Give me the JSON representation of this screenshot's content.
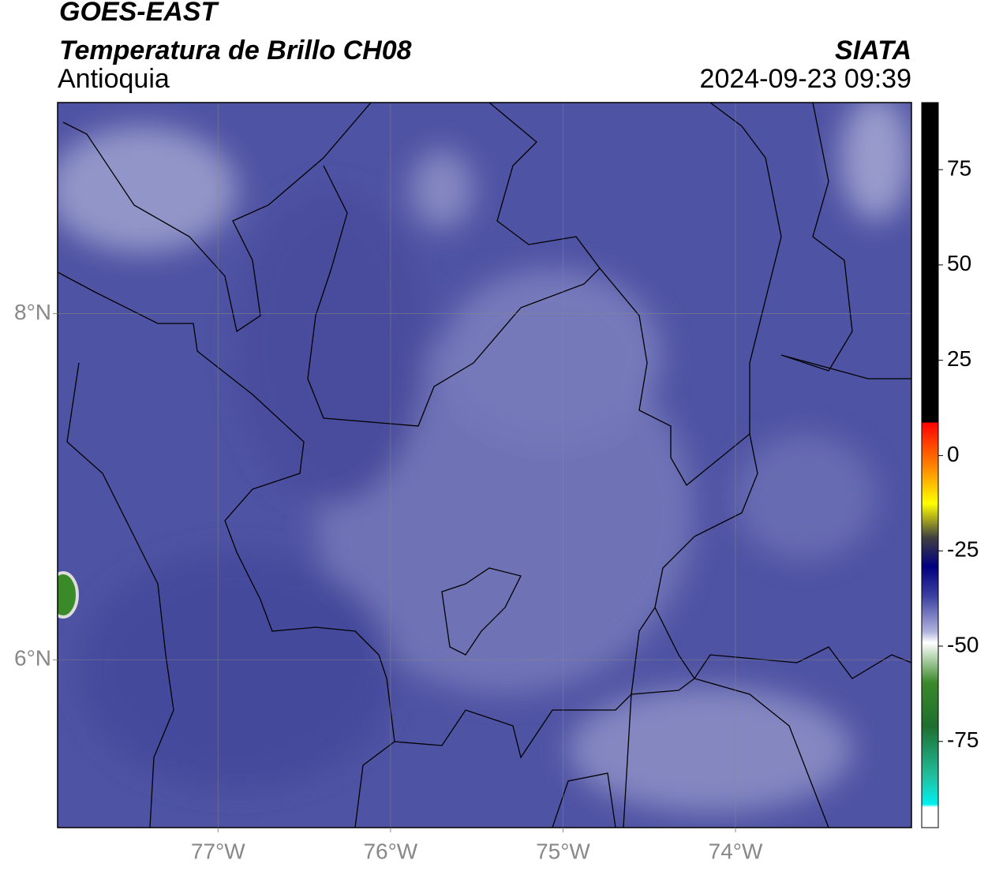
{
  "header": {
    "title": "GOES-EAST",
    "subtitle": "Temperatura de Brillo CH08",
    "region": "Antioquia",
    "source": "SIATA",
    "datetime": "2024-09-23 09:39"
  },
  "map": {
    "xlim": [
      -77.93,
      -72.98
    ],
    "ylim": [
      5.03,
      9.22
    ],
    "xticks": [
      {
        "value": -77,
        "label": "77°W"
      },
      {
        "value": -76,
        "label": "76°W"
      },
      {
        "value": -75,
        "label": "75°W"
      },
      {
        "value": -74,
        "label": "74°W"
      }
    ],
    "yticks": [
      {
        "value": 8,
        "label": "8°N"
      },
      {
        "value": 6,
        "label": "6°N"
      }
    ],
    "grid": true
  },
  "colorbar": {
    "lim": [
      -97.6,
      92.6
    ],
    "ticks": [
      75,
      50,
      25,
      0,
      -25,
      -50,
      -75
    ]
  }
}
